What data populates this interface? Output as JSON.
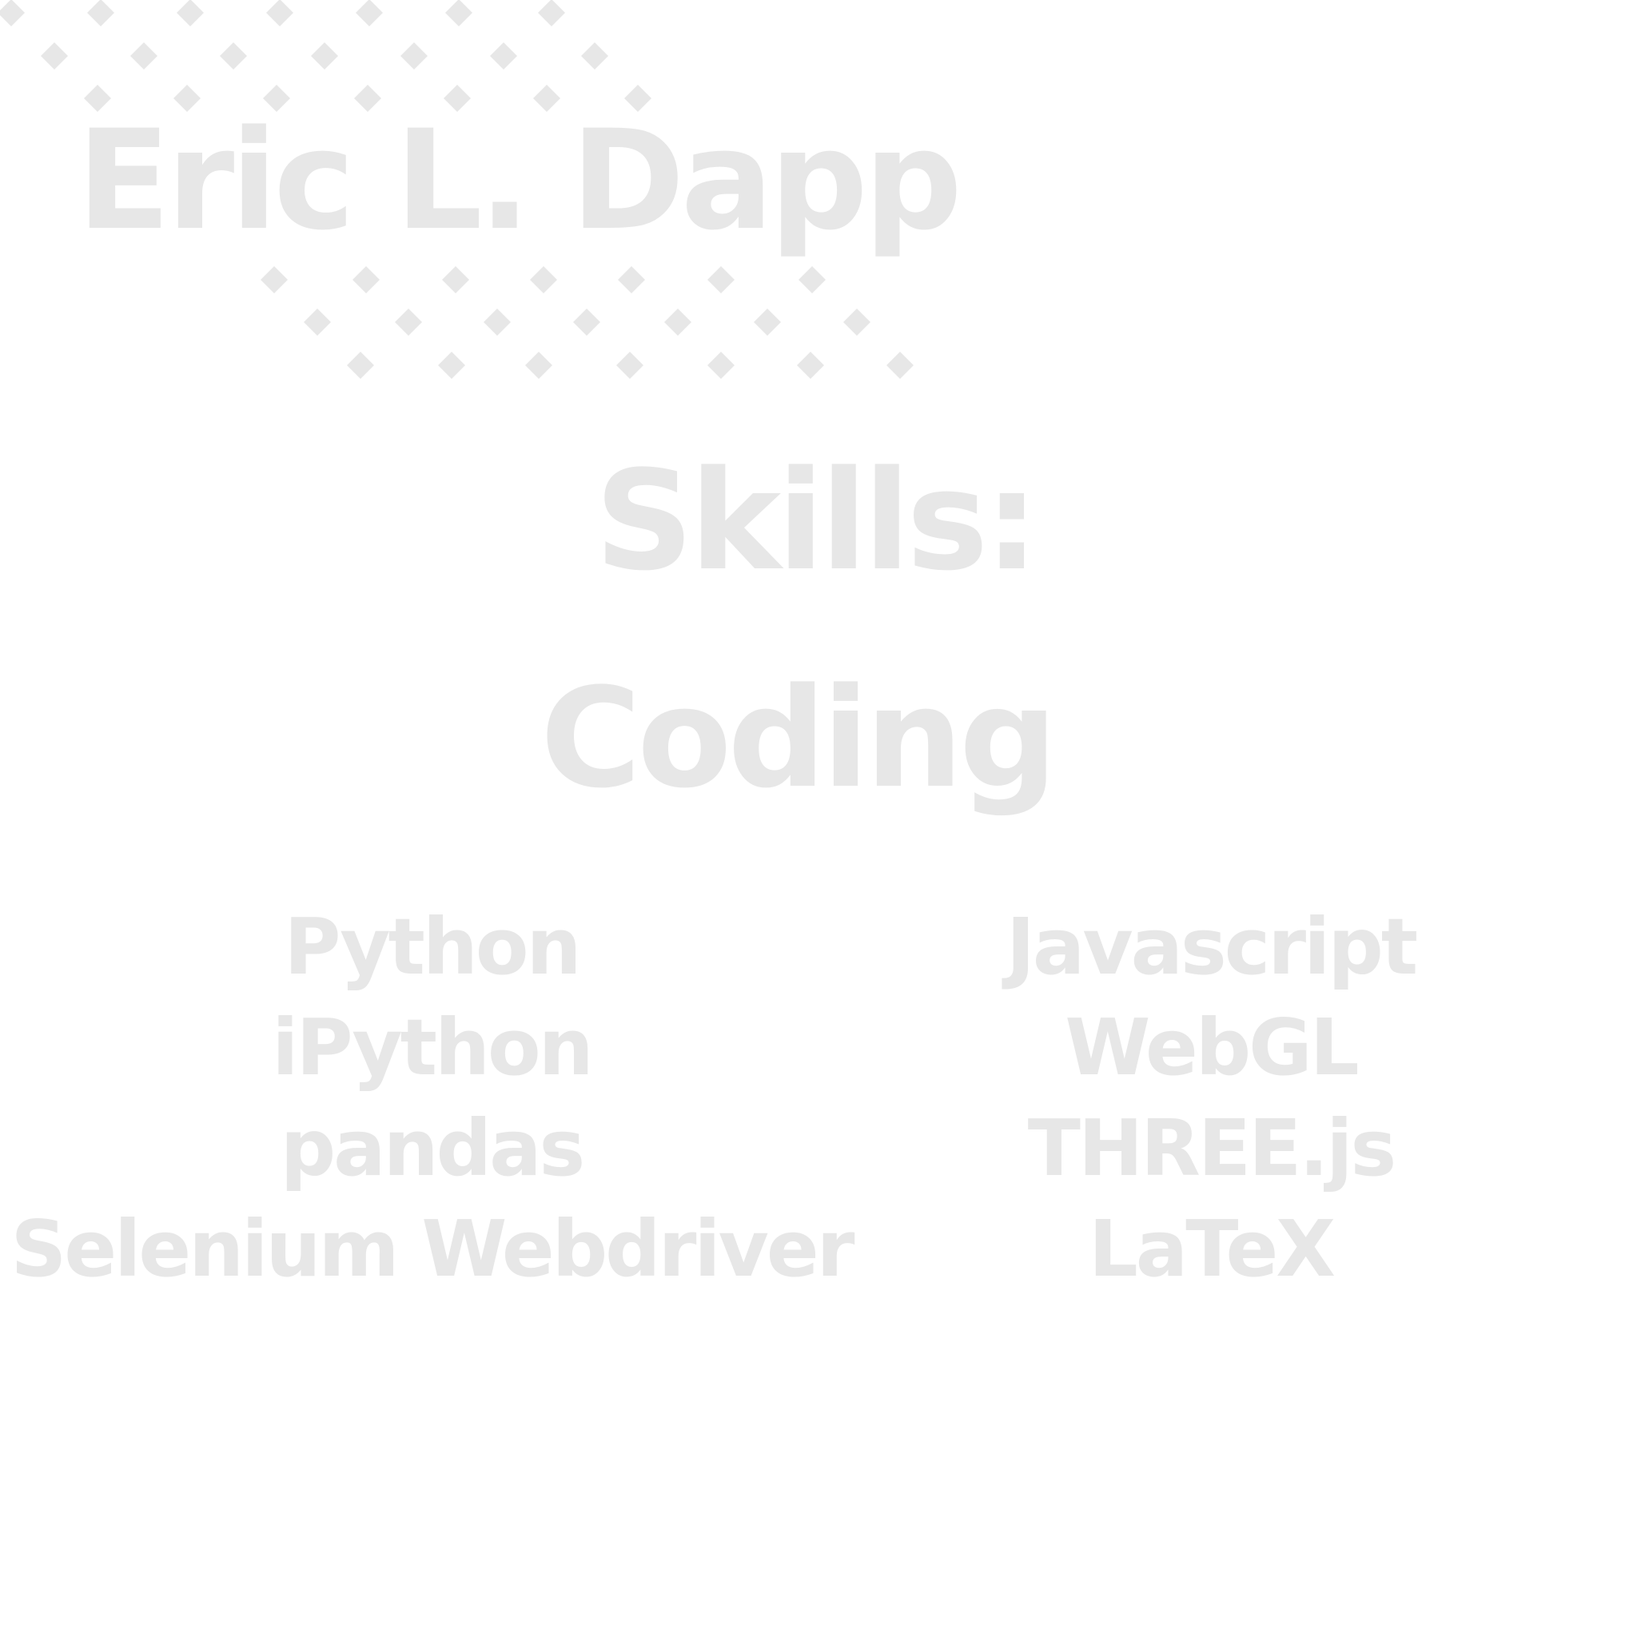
{
  "header": {
    "name": "Eric L. Dapp"
  },
  "section": {
    "title": "Skills:",
    "subtitle": "Coding"
  },
  "skills": {
    "left": [
      "Python",
      "iPython",
      "pandas",
      "Selenium Webdriver"
    ],
    "right": [
      "Javascript",
      "WebGL",
      "THREE.js",
      "LaTeX"
    ]
  },
  "colors": {
    "background": "#ffffff",
    "text": "#e7e7e7"
  },
  "decoration": {
    "pattern": "diamond-dots"
  }
}
